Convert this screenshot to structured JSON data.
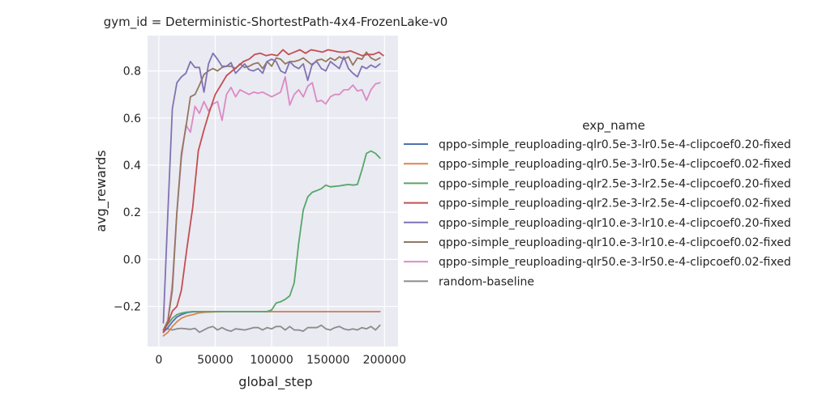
{
  "chart_data": {
    "type": "line",
    "title": "gym_id = Deterministic-ShortestPath-4x4-FrozenLake-v0",
    "xlabel": "global_step",
    "ylabel": "avg_rewards",
    "xlim": [
      -10000,
      212000
    ],
    "ylim": [
      -0.37,
      0.95
    ],
    "xticks": [
      0,
      50000,
      100000,
      150000,
      200000
    ],
    "xtick_labels": [
      "0",
      "50000",
      "100000",
      "150000",
      "200000"
    ],
    "yticks": [
      -0.2,
      0.0,
      0.2,
      0.4,
      0.6,
      0.8
    ],
    "ytick_labels": [
      "−0.2",
      "0.0",
      "0.2",
      "0.4",
      "0.6",
      "0.8"
    ],
    "grid": true,
    "legend_title": "exp_name",
    "legend_position": "right",
    "series": [
      {
        "name": "qppo-simple_reuploading-qlr0.5e-3-lr0.5e-4-clipcoef0.20-fixed",
        "color": "#4c72b0",
        "x": [
          4000,
          8000,
          12000,
          16000,
          20000,
          25000,
          30000,
          40000,
          60000,
          100000,
          150000,
          196000
        ],
        "y": [
          -0.31,
          -0.29,
          -0.265,
          -0.245,
          -0.235,
          -0.226,
          -0.223,
          -0.222,
          -0.222,
          -0.222,
          -0.222,
          -0.222
        ]
      },
      {
        "name": "qppo-simple_reuploading-qlr0.5e-3-lr0.5e-4-clipcoef0.02-fixed",
        "color": "#dd8452",
        "x": [
          4000,
          8000,
          12000,
          16000,
          20000,
          25000,
          30000,
          35000,
          40000,
          50000,
          60000,
          100000,
          150000,
          196000
        ],
        "y": [
          -0.325,
          -0.31,
          -0.285,
          -0.265,
          -0.25,
          -0.24,
          -0.235,
          -0.228,
          -0.225,
          -0.223,
          -0.222,
          -0.222,
          -0.222,
          -0.222
        ]
      },
      {
        "name": "qppo-simple_reuploading-qlr2.5e-3-lr2.5e-4-clipcoef0.20-fixed",
        "color": "#55a868",
        "x": [
          4000,
          8000,
          12000,
          16000,
          20000,
          25000,
          30000,
          40000,
          60000,
          80000,
          96000,
          100000,
          104000,
          108000,
          112000,
          116000,
          120000,
          124000,
          128000,
          132000,
          136000,
          140000,
          144000,
          148000,
          152000,
          156000,
          160000,
          164000,
          168000,
          172000,
          176000,
          180000,
          184000,
          188000,
          192000,
          196000
        ],
        "y": [
          -0.3,
          -0.275,
          -0.25,
          -0.235,
          -0.228,
          -0.224,
          -0.222,
          -0.222,
          -0.222,
          -0.222,
          -0.222,
          -0.215,
          -0.185,
          -0.18,
          -0.17,
          -0.155,
          -0.1,
          0.07,
          0.21,
          0.265,
          0.285,
          0.292,
          0.3,
          0.315,
          0.308,
          0.31,
          0.312,
          0.315,
          0.318,
          0.315,
          0.318,
          0.38,
          0.45,
          0.46,
          0.45,
          0.43
        ]
      },
      {
        "name": "qppo-simple_reuploading-qlr2.5e-3-lr2.5e-4-clipcoef0.02-fixed",
        "color": "#c44e52",
        "x": [
          4000,
          8000,
          12000,
          16000,
          20000,
          25000,
          30000,
          35000,
          40000,
          45000,
          50000,
          55000,
          60000,
          65000,
          70000,
          75000,
          80000,
          85000,
          90000,
          95000,
          100000,
          105000,
          110000,
          115000,
          120000,
          125000,
          130000,
          135000,
          140000,
          145000,
          150000,
          155000,
          160000,
          165000,
          170000,
          175000,
          180000,
          185000,
          190000,
          195000,
          199000
        ],
        "y": [
          -0.31,
          -0.27,
          -0.22,
          -0.2,
          -0.13,
          0.05,
          0.22,
          0.46,
          0.55,
          0.63,
          0.7,
          0.74,
          0.78,
          0.8,
          0.82,
          0.84,
          0.85,
          0.87,
          0.875,
          0.865,
          0.87,
          0.865,
          0.89,
          0.87,
          0.88,
          0.89,
          0.875,
          0.89,
          0.885,
          0.88,
          0.89,
          0.885,
          0.88,
          0.88,
          0.885,
          0.875,
          0.865,
          0.87,
          0.87,
          0.88,
          0.865
        ]
      },
      {
        "name": "qppo-simple_reuploading-qlr10.e-3-lr10.e-4-clipcoef0.20-fixed",
        "color": "#8172b3",
        "x": [
          4000,
          8000,
          12000,
          16000,
          20000,
          24000,
          28000,
          32000,
          36000,
          40000,
          44000,
          48000,
          52000,
          56000,
          60000,
          64000,
          68000,
          72000,
          76000,
          80000,
          84000,
          88000,
          92000,
          96000,
          100000,
          104000,
          108000,
          112000,
          116000,
          120000,
          124000,
          128000,
          132000,
          136000,
          140000,
          144000,
          148000,
          152000,
          156000,
          160000,
          164000,
          168000,
          172000,
          176000,
          180000,
          184000,
          188000,
          192000,
          196000
        ],
        "y": [
          -0.27,
          0.2,
          0.64,
          0.75,
          0.775,
          0.79,
          0.84,
          0.815,
          0.815,
          0.71,
          0.83,
          0.875,
          0.85,
          0.82,
          0.82,
          0.835,
          0.79,
          0.81,
          0.83,
          0.805,
          0.8,
          0.81,
          0.79,
          0.84,
          0.85,
          0.84,
          0.8,
          0.79,
          0.84,
          0.82,
          0.81,
          0.83,
          0.76,
          0.83,
          0.84,
          0.81,
          0.8,
          0.84,
          0.825,
          0.81,
          0.86,
          0.81,
          0.79,
          0.775,
          0.82,
          0.81,
          0.825,
          0.815,
          0.83
        ]
      },
      {
        "name": "qppo-simple_reuploading-qlr10.e-3-lr10.e-4-clipcoef0.02-fixed",
        "color": "#937860",
        "x": [
          4000,
          8000,
          12000,
          16000,
          20000,
          24000,
          28000,
          32000,
          36000,
          40000,
          44000,
          48000,
          52000,
          56000,
          60000,
          64000,
          68000,
          72000,
          76000,
          80000,
          84000,
          88000,
          92000,
          96000,
          100000,
          104000,
          108000,
          112000,
          116000,
          120000,
          124000,
          128000,
          132000,
          136000,
          140000,
          144000,
          148000,
          152000,
          156000,
          160000,
          164000,
          168000,
          172000,
          176000,
          180000,
          184000,
          188000,
          192000,
          196000
        ],
        "y": [
          -0.3,
          -0.26,
          -0.13,
          0.2,
          0.45,
          0.56,
          0.69,
          0.7,
          0.74,
          0.785,
          0.8,
          0.81,
          0.8,
          0.815,
          0.82,
          0.82,
          0.81,
          0.83,
          0.815,
          0.82,
          0.83,
          0.835,
          0.81,
          0.84,
          0.82,
          0.855,
          0.85,
          0.83,
          0.84,
          0.84,
          0.845,
          0.855,
          0.84,
          0.825,
          0.845,
          0.85,
          0.84,
          0.855,
          0.845,
          0.86,
          0.85,
          0.86,
          0.825,
          0.855,
          0.85,
          0.88,
          0.855,
          0.845,
          0.855
        ]
      },
      {
        "name": "qppo-simple_reuploading-qlr50.e-3-lr50.e-4-clipcoef0.02-fixed",
        "color": "#da8bc3",
        "x": [
          4000,
          8000,
          12000,
          16000,
          20000,
          24000,
          28000,
          32000,
          36000,
          40000,
          44000,
          48000,
          52000,
          56000,
          60000,
          64000,
          68000,
          72000,
          76000,
          80000,
          84000,
          88000,
          92000,
          96000,
          100000,
          104000,
          108000,
          112000,
          116000,
          120000,
          124000,
          128000,
          132000,
          136000,
          140000,
          144000,
          148000,
          152000,
          156000,
          160000,
          164000,
          168000,
          172000,
          176000,
          180000,
          184000,
          188000,
          192000,
          196000
        ],
        "y": [
          -0.3,
          -0.26,
          -0.1,
          0.2,
          0.43,
          0.57,
          0.54,
          0.65,
          0.62,
          0.67,
          0.63,
          0.66,
          0.67,
          0.59,
          0.7,
          0.73,
          0.69,
          0.72,
          0.71,
          0.7,
          0.71,
          0.705,
          0.71,
          0.7,
          0.69,
          0.7,
          0.71,
          0.775,
          0.655,
          0.7,
          0.72,
          0.69,
          0.735,
          0.75,
          0.67,
          0.675,
          0.66,
          0.69,
          0.7,
          0.7,
          0.72,
          0.72,
          0.74,
          0.715,
          0.72,
          0.675,
          0.72,
          0.745,
          0.75
        ]
      },
      {
        "name": "random-baseline",
        "color": "#8c8c8c",
        "x": [
          4000,
          8000,
          12000,
          16000,
          20000,
          24000,
          28000,
          32000,
          36000,
          40000,
          44000,
          48000,
          52000,
          56000,
          60000,
          64000,
          68000,
          72000,
          76000,
          80000,
          84000,
          88000,
          92000,
          96000,
          100000,
          104000,
          108000,
          112000,
          116000,
          120000,
          124000,
          128000,
          132000,
          136000,
          140000,
          144000,
          148000,
          152000,
          156000,
          160000,
          164000,
          168000,
          172000,
          176000,
          180000,
          184000,
          188000,
          192000,
          196000
        ],
        "y": [
          -0.3,
          -0.295,
          -0.3,
          -0.295,
          -0.293,
          -0.295,
          -0.297,
          -0.293,
          -0.31,
          -0.3,
          -0.29,
          -0.285,
          -0.3,
          -0.29,
          -0.3,
          -0.305,
          -0.295,
          -0.297,
          -0.3,
          -0.295,
          -0.29,
          -0.29,
          -0.3,
          -0.29,
          -0.295,
          -0.285,
          -0.285,
          -0.3,
          -0.285,
          -0.3,
          -0.3,
          -0.305,
          -0.29,
          -0.29,
          -0.29,
          -0.28,
          -0.295,
          -0.3,
          -0.29,
          -0.285,
          -0.295,
          -0.3,
          -0.295,
          -0.3,
          -0.29,
          -0.295,
          -0.285,
          -0.3,
          -0.28
        ]
      }
    ]
  }
}
